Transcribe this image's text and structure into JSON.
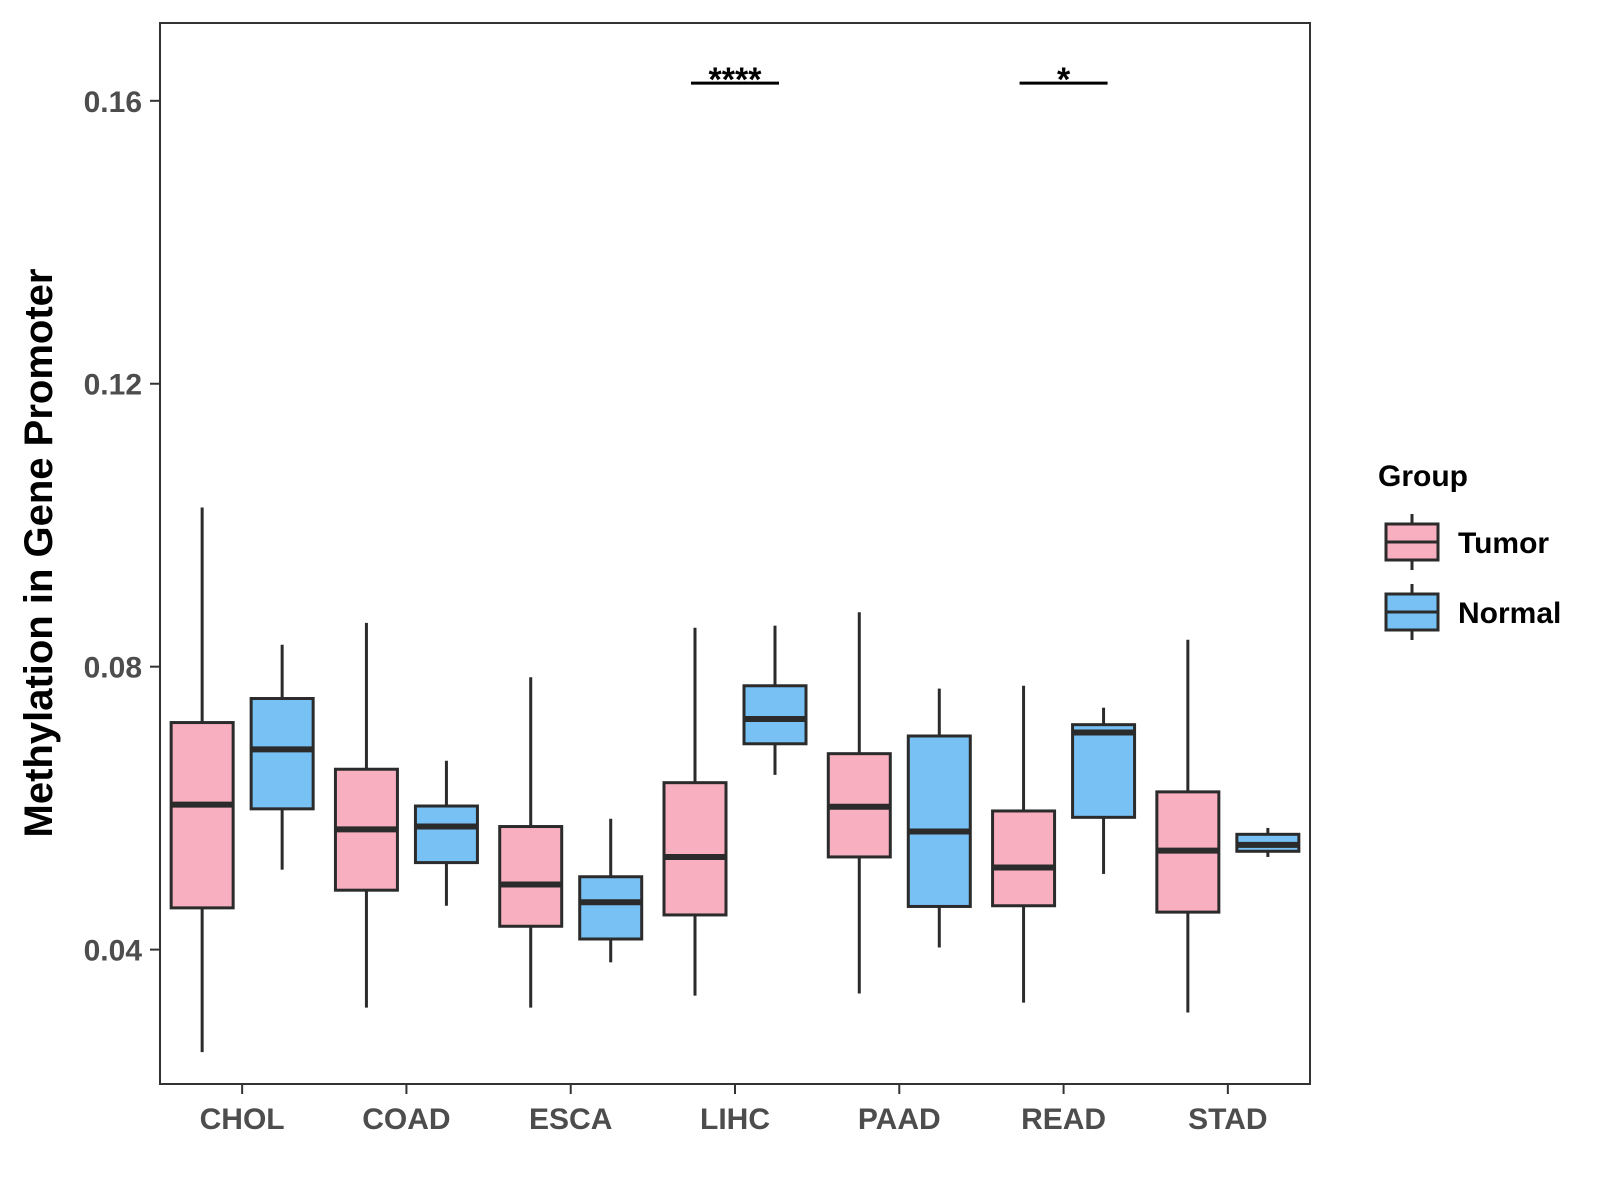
{
  "chart_data": {
    "type": "boxplot",
    "title": "",
    "xlabel": "",
    "ylabel": "Methylation in Gene Promoter",
    "ylim": [
      0.021,
      0.171
    ],
    "yticks": [
      0.04,
      0.08,
      0.12,
      0.16
    ],
    "ytick_labels": [
      "0.04",
      "0.08",
      "0.12",
      "0.16"
    ],
    "categories": [
      "CHOL",
      "COAD",
      "ESCA",
      "LIHC",
      "PAAD",
      "READ",
      "STAD"
    ],
    "legend": {
      "title": "Group",
      "position": "right",
      "entries": [
        {
          "name": "Tumor",
          "color": "#F8AFC0"
        },
        {
          "name": "Normal",
          "color": "#77C1F5"
        }
      ]
    },
    "series": [
      {
        "name": "Tumor",
        "color": "#F8AFC0",
        "boxes": [
          {
            "category": "CHOL",
            "min": 0.0255,
            "q1": 0.0459,
            "median": 0.0605,
            "q3": 0.0721,
            "max": 0.1025
          },
          {
            "category": "COAD",
            "min": 0.0318,
            "q1": 0.0484,
            "median": 0.057,
            "q3": 0.0655,
            "max": 0.0862
          },
          {
            "category": "ESCA",
            "min": 0.0318,
            "q1": 0.0433,
            "median": 0.0492,
            "q3": 0.0574,
            "max": 0.0785
          },
          {
            "category": "LIHC",
            "min": 0.0335,
            "q1": 0.0449,
            "median": 0.0531,
            "q3": 0.0636,
            "max": 0.0855
          },
          {
            "category": "PAAD",
            "min": 0.0338,
            "q1": 0.0531,
            "median": 0.0602,
            "q3": 0.0677,
            "max": 0.0877
          },
          {
            "category": "READ",
            "min": 0.0325,
            "q1": 0.0462,
            "median": 0.0516,
            "q3": 0.0596,
            "max": 0.0773
          },
          {
            "category": "STAD",
            "min": 0.0311,
            "q1": 0.0453,
            "median": 0.054,
            "q3": 0.0623,
            "max": 0.0838
          }
        ]
      },
      {
        "name": "Normal",
        "color": "#77C1F5",
        "boxes": [
          {
            "category": "CHOL",
            "min": 0.0513,
            "q1": 0.0599,
            "median": 0.0683,
            "q3": 0.0755,
            "max": 0.0831
          },
          {
            "category": "COAD",
            "min": 0.0462,
            "q1": 0.0523,
            "median": 0.0574,
            "q3": 0.0603,
            "max": 0.0667
          },
          {
            "category": "ESCA",
            "min": 0.0382,
            "q1": 0.0415,
            "median": 0.0467,
            "q3": 0.0503,
            "max": 0.0585
          },
          {
            "category": "LIHC",
            "min": 0.0647,
            "q1": 0.0691,
            "median": 0.0726,
            "q3": 0.0773,
            "max": 0.0858
          },
          {
            "category": "PAAD",
            "min": 0.0403,
            "q1": 0.0461,
            "median": 0.0567,
            "q3": 0.0702,
            "max": 0.0769
          },
          {
            "category": "READ",
            "min": 0.0507,
            "q1": 0.0587,
            "median": 0.0707,
            "q3": 0.0718,
            "max": 0.0742
          },
          {
            "category": "STAD",
            "min": 0.0531,
            "q1": 0.0539,
            "median": 0.0548,
            "q3": 0.0563,
            "max": 0.0572
          }
        ]
      }
    ],
    "annotations": [
      {
        "category": "LIHC",
        "label": "****",
        "y": 0.1625
      },
      {
        "category": "READ",
        "label": "*",
        "y": 0.1625
      }
    ]
  }
}
